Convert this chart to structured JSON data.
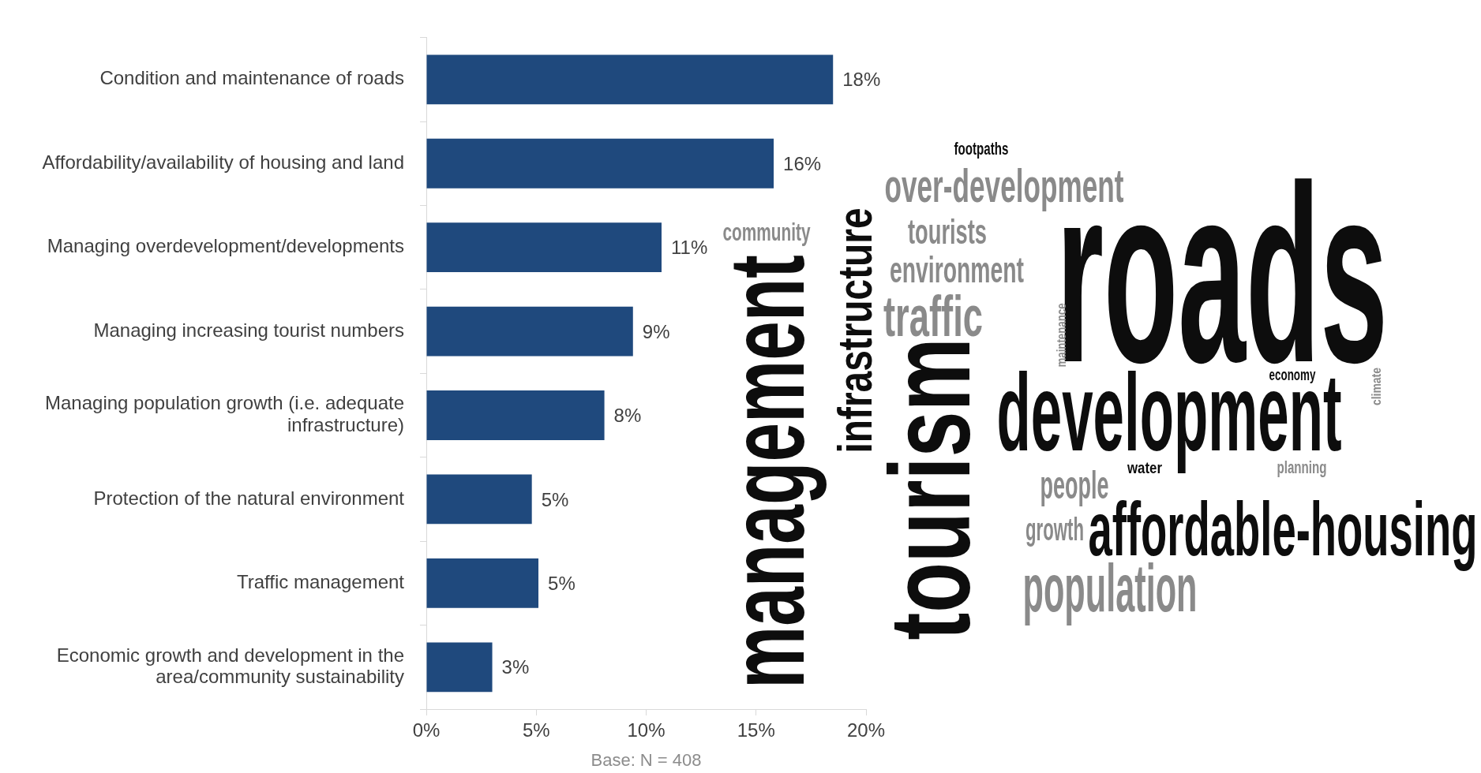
{
  "chart_data": [
    {
      "type": "bar",
      "orientation": "horizontal",
      "categories": [
        "Condition and maintenance of roads",
        "Affordability/availability of housing and land",
        "Managing overdevelopment/developments",
        "Managing increasing tourist numbers",
        "Managing population growth (i.e. adequate infrastructure)",
        "Protection of the natural environment",
        "Traffic management",
        "Economic growth and development in the area/community sustainability"
      ],
      "values": [
        18.5,
        15.8,
        10.7,
        9.4,
        8.1,
        4.8,
        5.1,
        3.0
      ],
      "value_labels": [
        "18%",
        "16%",
        "11%",
        "9%",
        "8%",
        "5%",
        "5%",
        "3%"
      ],
      "color": "#1f497d",
      "xlim": [
        0,
        20
      ],
      "xticks": [
        {
          "value": 0,
          "label": "0%"
        },
        {
          "value": 5,
          "label": "5%"
        },
        {
          "value": 10,
          "label": "10%"
        },
        {
          "value": 15,
          "label": "15%"
        },
        {
          "value": 20,
          "label": "20%"
        }
      ],
      "grid": false,
      "legend": false,
      "annotations": [
        "Base: N = 408"
      ]
    },
    {
      "type": "other",
      "annotations": [
        "footpaths",
        "over-development",
        "community",
        "tourists",
        "environment",
        "traffic",
        "roads",
        "infrastructure",
        "management",
        "tourism",
        "maintenance",
        "development",
        "economy",
        "climate",
        "people",
        "water",
        "planning",
        "growth",
        "affordable-housing",
        "population"
      ]
    }
  ]
}
